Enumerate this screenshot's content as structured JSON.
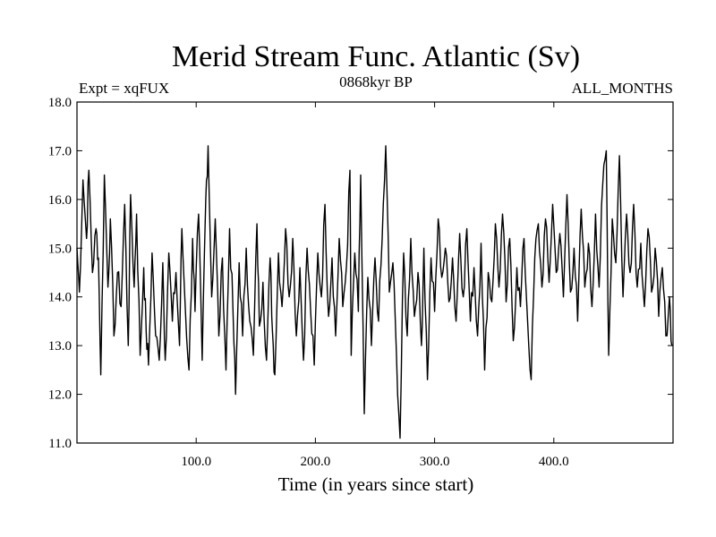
{
  "chart_data": {
    "type": "line",
    "title": "Merid Stream Func. Atlantic (Sv)",
    "subtitle_left": "Expt = xqFUX",
    "subtitle_center": "0868kyr BP",
    "subtitle_right": "ALL_MONTHS",
    "xlabel": "Time (in years since start)",
    "ylabel": "",
    "xlim": [
      0,
      500
    ],
    "ylim": [
      11.0,
      18.0
    ],
    "xticks": [
      100,
      200,
      300,
      400
    ],
    "xtick_labels": [
      "100.0",
      "200.0",
      "300.0",
      "400.0"
    ],
    "yticks": [
      11,
      12,
      13,
      14,
      15,
      16,
      17,
      18
    ],
    "ytick_labels": [
      "11.0",
      "12.0",
      "13.0",
      "14.0",
      "15.0",
      "16.0",
      "17.0",
      "18.0"
    ],
    "series": [
      {
        "name": "Merid Stream Func. Atlantic",
        "color": "#000000",
        "anchors": [
          [
            0,
            15.0
          ],
          [
            2,
            14.1
          ],
          [
            5,
            16.4
          ],
          [
            8,
            15.2
          ],
          [
            10,
            16.6
          ],
          [
            13,
            14.5
          ],
          [
            16,
            15.4
          ],
          [
            18,
            14.8
          ],
          [
            20,
            12.4
          ],
          [
            23,
            16.5
          ],
          [
            26,
            14.2
          ],
          [
            28,
            15.6
          ],
          [
            31,
            13.2
          ],
          [
            34,
            14.5
          ],
          [
            37,
            13.8
          ],
          [
            40,
            15.9
          ],
          [
            43,
            13.0
          ],
          [
            45,
            16.1
          ],
          [
            48,
            14.2
          ],
          [
            50,
            15.7
          ],
          [
            53,
            12.8
          ],
          [
            56,
            14.6
          ],
          [
            58,
            13.3
          ],
          [
            60,
            12.6
          ],
          [
            63,
            14.9
          ],
          [
            66,
            13.2
          ],
          [
            69,
            12.7
          ],
          [
            72,
            14.7
          ],
          [
            74,
            12.7
          ],
          [
            77,
            14.9
          ],
          [
            80,
            13.5
          ],
          [
            83,
            14.5
          ],
          [
            86,
            13.0
          ],
          [
            88,
            15.4
          ],
          [
            91,
            13.7
          ],
          [
            94,
            12.5
          ],
          [
            97,
            15.2
          ],
          [
            99,
            13.7
          ],
          [
            102,
            15.7
          ],
          [
            105,
            12.7
          ],
          [
            108,
            16.0
          ],
          [
            110,
            17.1
          ],
          [
            113,
            14.0
          ],
          [
            116,
            15.6
          ],
          [
            119,
            13.2
          ],
          [
            122,
            14.8
          ],
          [
            125,
            12.5
          ],
          [
            128,
            15.4
          ],
          [
            131,
            13.6
          ],
          [
            133,
            12.0
          ],
          [
            136,
            14.7
          ],
          [
            139,
            13.2
          ],
          [
            142,
            15.0
          ],
          [
            145,
            13.5
          ],
          [
            148,
            12.8
          ],
          [
            151,
            15.5
          ],
          [
            153,
            13.4
          ],
          [
            156,
            14.3
          ],
          [
            159,
            12.7
          ],
          [
            162,
            14.8
          ],
          [
            164,
            13.3
          ],
          [
            166,
            12.4
          ],
          [
            169,
            14.9
          ],
          [
            172,
            13.8
          ],
          [
            175,
            15.4
          ],
          [
            178,
            14.0
          ],
          [
            181,
            15.2
          ],
          [
            184,
            13.2
          ],
          [
            187,
            14.6
          ],
          [
            190,
            12.7
          ],
          [
            193,
            15.0
          ],
          [
            196,
            13.7
          ],
          [
            199,
            12.6
          ],
          [
            202,
            14.9
          ],
          [
            205,
            14.0
          ],
          [
            208,
            15.9
          ],
          [
            211,
            13.6
          ],
          [
            214,
            14.8
          ],
          [
            217,
            13.2
          ],
          [
            220,
            15.2
          ],
          [
            223,
            13.8
          ],
          [
            226,
            14.6
          ],
          [
            229,
            16.6
          ],
          [
            230,
            12.8
          ],
          [
            233,
            14.9
          ],
          [
            236,
            13.7
          ],
          [
            238,
            16.5
          ],
          [
            241,
            11.6
          ],
          [
            244,
            14.4
          ],
          [
            247,
            13.0
          ],
          [
            250,
            14.8
          ],
          [
            253,
            13.5
          ],
          [
            256,
            15.2
          ],
          [
            259,
            17.1
          ],
          [
            262,
            14.1
          ],
          [
            265,
            14.7
          ],
          [
            268,
            12.8
          ],
          [
            271,
            11.1
          ],
          [
            274,
            14.9
          ],
          [
            277,
            13.2
          ],
          [
            280,
            15.2
          ],
          [
            283,
            13.6
          ],
          [
            286,
            14.5
          ],
          [
            289,
            13.0
          ],
          [
            291,
            15.0
          ],
          [
            294,
            12.3
          ],
          [
            297,
            14.8
          ],
          [
            300,
            13.7
          ],
          [
            303,
            15.6
          ],
          [
            306,
            14.4
          ],
          [
            309,
            15.0
          ],
          [
            312,
            13.9
          ],
          [
            315,
            14.8
          ],
          [
            318,
            13.5
          ],
          [
            321,
            15.3
          ],
          [
            324,
            14.0
          ],
          [
            327,
            15.4
          ],
          [
            330,
            13.5
          ],
          [
            333,
            14.6
          ],
          [
            336,
            13.2
          ],
          [
            339,
            15.1
          ],
          [
            342,
            12.5
          ],
          [
            345,
            14.5
          ],
          [
            348,
            13.9
          ],
          [
            351,
            15.5
          ],
          [
            354,
            14.2
          ],
          [
            357,
            15.7
          ],
          [
            360,
            13.9
          ],
          [
            363,
            15.2
          ],
          [
            366,
            13.1
          ],
          [
            369,
            14.6
          ],
          [
            372,
            13.8
          ],
          [
            375,
            15.2
          ],
          [
            378,
            13.5
          ],
          [
            381,
            12.3
          ],
          [
            384,
            14.8
          ],
          [
            387,
            15.5
          ],
          [
            390,
            14.2
          ],
          [
            393,
            15.6
          ],
          [
            396,
            14.3
          ],
          [
            399,
            15.9
          ],
          [
            402,
            14.5
          ],
          [
            405,
            15.3
          ],
          [
            408,
            14.0
          ],
          [
            411,
            16.1
          ],
          [
            414,
            14.1
          ],
          [
            417,
            15.0
          ],
          [
            420,
            13.5
          ],
          [
            423,
            15.8
          ],
          [
            426,
            14.2
          ],
          [
            429,
            15.1
          ],
          [
            432,
            13.8
          ],
          [
            435,
            15.7
          ],
          [
            438,
            14.2
          ],
          [
            441,
            16.3
          ],
          [
            444,
            17.0
          ],
          [
            446,
            12.8
          ],
          [
            449,
            15.6
          ],
          [
            452,
            14.7
          ],
          [
            455,
            16.9
          ],
          [
            458,
            14.0
          ],
          [
            461,
            15.7
          ],
          [
            464,
            14.5
          ],
          [
            467,
            15.9
          ],
          [
            470,
            14.2
          ],
          [
            473,
            15.1
          ],
          [
            476,
            13.8
          ],
          [
            479,
            15.4
          ],
          [
            482,
            14.1
          ],
          [
            485,
            15.0
          ],
          [
            488,
            13.6
          ],
          [
            491,
            14.6
          ],
          [
            494,
            13.2
          ],
          [
            497,
            14.0
          ],
          [
            499,
            13.0
          ]
        ]
      }
    ]
  }
}
